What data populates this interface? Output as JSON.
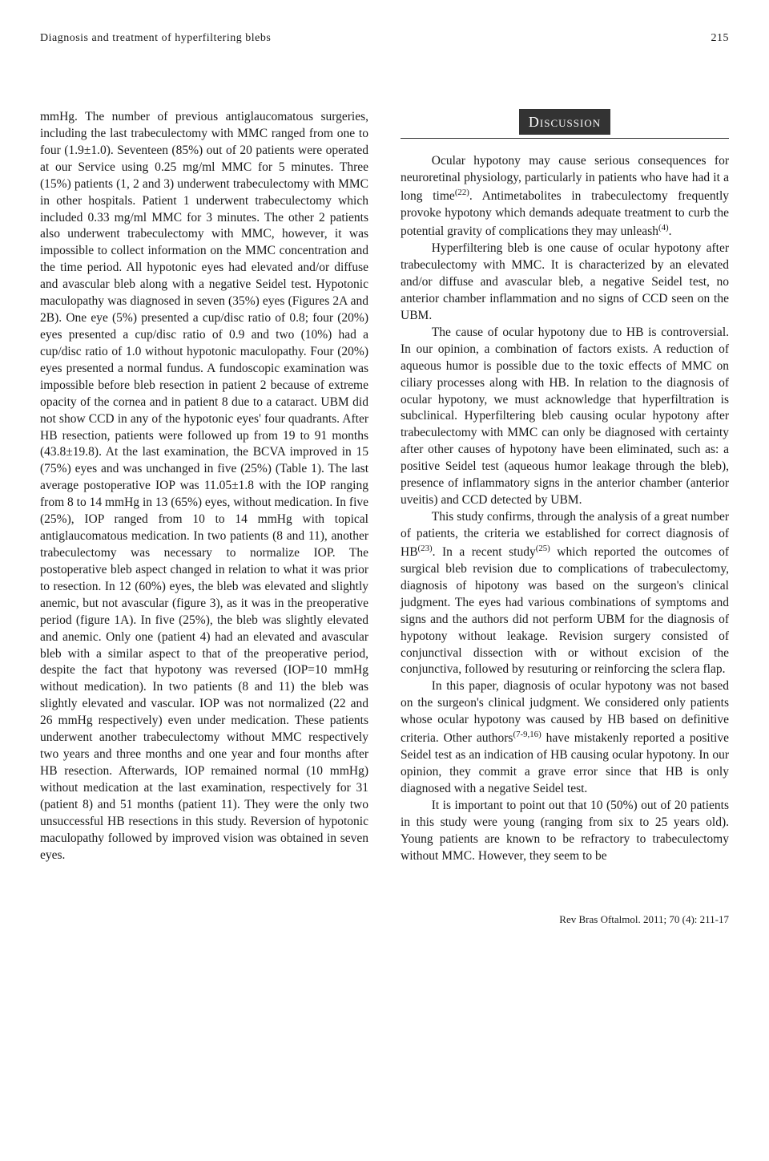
{
  "header": {
    "running_title": "Diagnosis and treatment of hyperfiltering blebs",
    "page_number": "215"
  },
  "left_column": {
    "text": "mmHg. The number of previous antiglaucomatous surgeries, including the last trabeculectomy with MMC ranged from one to four (1.9±1.0). Seventeen (85%) out of 20 patients were operated at our Service using 0.25 mg/ml MMC for 5 minutes. Three (15%) patients (1, 2 and 3) underwent trabeculectomy with MMC in other hospitals. Patient 1 underwent trabeculectomy which included 0.33 mg/ml MMC for 3 minutes. The other 2 patients also underwent trabeculectomy with MMC, however, it was impossible to collect information on the MMC concentration and the time period. All hypotonic eyes had elevated and/or diffuse and avascular bleb along with a negative Seidel test. Hypotonic maculopathy was diagnosed in seven (35%) eyes (Figures 2A and 2B). One eye (5%) presented a cup/disc ratio of 0.8; four (20%) eyes presented a cup/disc ratio of 0.9 and two (10%) had a cup/disc ratio of 1.0 without hypotonic maculopathy. Four (20%) eyes presented a normal fundus. A fundoscopic examination was impossible before bleb resection in patient 2 because of extreme opacity of the cornea and in patient 8 due to a cataract. UBM did not show CCD in any of the hypotonic eyes' four quadrants. After HB resection, patients were followed up from 19 to 91 months (43.8±19.8). At the last examination, the BCVA improved in 15 (75%) eyes and was unchanged in five (25%) (Table 1). The last average postoperative IOP was 11.05±1.8 with the IOP ranging from 8 to 14 mmHg in 13 (65%) eyes, without medication. In five (25%), IOP ranged from 10 to 14 mmHg with topical antiglaucomatous medication. In two patients (8 and 11), another trabeculectomy was necessary to normalize IOP. The postoperative bleb aspect changed in relation to what it was prior to resection. In 12 (60%) eyes, the bleb was elevated and slightly anemic, but not avascular (figure 3), as it was in the preoperative period (figure 1A). In five (25%), the bleb was slightly elevated and anemic. Only one (patient 4) had an elevated and avascular bleb with a similar aspect to that of the preoperative period, despite the fact that hypotony was reversed (IOP=10 mmHg without medication). In two patients (8 and 11) the bleb was slightly elevated and vascular. IOP was not normalized (22 and 26 mmHg respectively) even under medication. These patients underwent another trabeculectomy without MMC respectively two years and three months and one year and four months after HB resection. Afterwards, IOP remained normal (10 mmHg) without medication at the last examination, respectively for 31 (patient 8) and 51 months (patient 11). They were the only two unsuccessful HB resections in this study. Reversion of hypotonic maculopathy followed by improved vision was obtained in seven eyes."
  },
  "right_column": {
    "heading": "Discussion",
    "p1": "Ocular hypotony may cause serious consequences for neuroretinal physiology, particularly in patients who have had it a long time",
    "p1_ref": "(22)",
    "p1_cont": ". Antimetabolites in trabeculectomy frequently provoke hypotony which demands adequate treatment to curb the potential gravity of complications they may unleash",
    "p1_ref2": "(4)",
    "p1_end": ".",
    "p2": "Hyperfiltering bleb is one cause of ocular hypotony after trabeculectomy with MMC. It is characterized by an elevated and/or diffuse and avascular bleb, a negative Seidel test, no anterior chamber inflammation and no signs of CCD seen on the UBM.",
    "p3": "The cause of ocular hypotony due to HB is controversial. In our opinion, a combination of factors exists. A reduction of aqueous humor is possible due to the toxic effects of MMC on ciliary processes along with HB. In relation to the diagnosis of ocular hypotony, we must acknowledge that hyperfiltration is subclinical. Hyperfiltering bleb causing ocular hypotony after trabeculectomy with MMC can only be diagnosed with certainty after other causes of hypotony have been eliminated, such as: a positive Seidel test (aqueous humor leakage through the bleb), presence of inflammatory signs in the anterior chamber (anterior uveitis) and CCD detected by UBM.",
    "p4": "This study confirms, through the analysis of a great number of patients, the criteria we established for correct diagnosis of HB",
    "p4_ref": "(23)",
    "p4_cont": ". In a recent study",
    "p4_ref2": "(25)",
    "p4_cont2": " which reported the outcomes of surgical bleb revision due to complications of trabeculectomy, diagnosis of hipotony was based on the surgeon's clinical judgment. The eyes had various combinations of symptoms and signs and the authors did not perform UBM for the diagnosis of hypotony without leakage. Revision surgery consisted of conjunctival dissection with or without excision of the conjunctiva, followed by resuturing or reinforcing the sclera flap.",
    "p5": "In this paper, diagnosis of ocular hypotony was not based on the surgeon's clinical judgment. We considered only patients whose ocular hypotony was caused by HB based on definitive criteria. Other authors",
    "p5_ref": "(7-9,16)",
    "p5_cont": " have mistakenly reported a positive Seidel test as an indication of HB causing ocular hypotony. In our opinion, they commit a grave error since that HB is only diagnosed with a negative Seidel test.",
    "p6": "It is important to point out that 10 (50%) out of 20 patients in this study were young (ranging from six to 25 years old). Young patients are known to be refractory to trabeculectomy without MMC. However, they seem to be"
  },
  "footer": {
    "citation": "Rev Bras Oftalmol. 2011; 70 (4): 211-17"
  }
}
